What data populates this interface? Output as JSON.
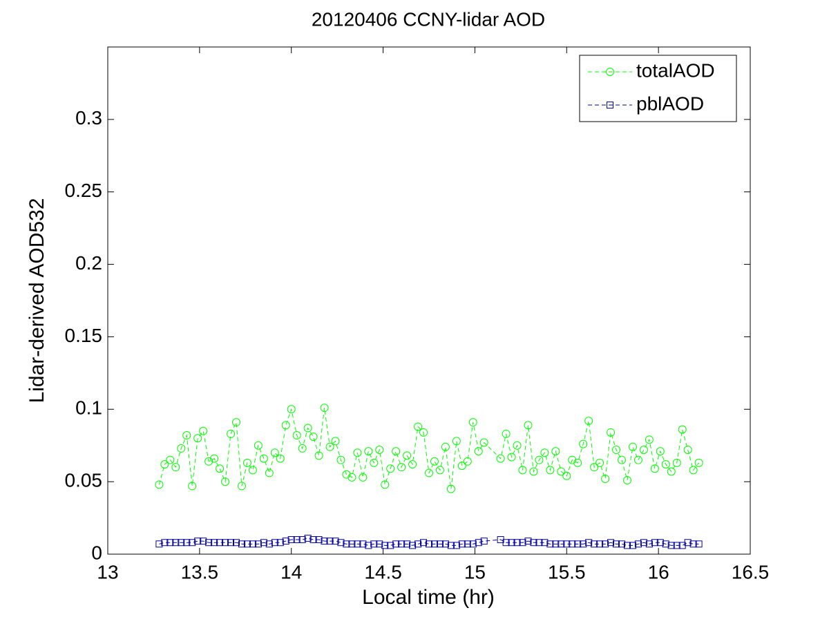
{
  "chart_data": {
    "type": "line",
    "title": "20120406 CCNY-lidar AOD",
    "xlabel": "Local time (hr)",
    "ylabel": "Lidar-derived AOD532",
    "xlim": [
      13,
      16.5
    ],
    "xticks": [
      13,
      13.5,
      14,
      14.5,
      15,
      15.5,
      16,
      16.5
    ],
    "ylim": [
      0,
      0.35
    ],
    "yticks": [
      0,
      0.05,
      0.1,
      0.15,
      0.2,
      0.25,
      0.3
    ],
    "legend": "upper right",
    "grid": false,
    "x": [
      13.28,
      13.31,
      13.34,
      13.37,
      13.4,
      13.43,
      13.46,
      13.49,
      13.52,
      13.55,
      13.58,
      13.61,
      13.64,
      13.67,
      13.7,
      13.73,
      13.76,
      13.79,
      13.82,
      13.85,
      13.88,
      13.91,
      13.94,
      13.97,
      14.0,
      14.03,
      14.06,
      14.09,
      14.12,
      14.15,
      14.18,
      14.21,
      14.24,
      14.27,
      14.3,
      14.33,
      14.36,
      14.39,
      14.42,
      14.45,
      14.48,
      14.51,
      14.54,
      14.57,
      14.6,
      14.63,
      14.66,
      14.69,
      14.72,
      14.75,
      14.78,
      14.81,
      14.84,
      14.87,
      14.9,
      14.93,
      14.96,
      14.99,
      15.02,
      15.05,
      15.14,
      15.17,
      15.2,
      15.23,
      15.26,
      15.29,
      15.32,
      15.35,
      15.38,
      15.41,
      15.44,
      15.47,
      15.5,
      15.53,
      15.56,
      15.59,
      15.62,
      15.65,
      15.68,
      15.71,
      15.74,
      15.77,
      15.8,
      15.83,
      15.86,
      15.89,
      15.92,
      15.95,
      15.98,
      16.01,
      16.04,
      16.07,
      16.1,
      16.13,
      16.16,
      16.19,
      16.22
    ],
    "series": [
      {
        "name": "totalAOD",
        "color": "#00ff00",
        "marker": "circle",
        "values": [
          0.048,
          0.062,
          0.065,
          0.06,
          0.073,
          0.082,
          0.047,
          0.08,
          0.085,
          0.064,
          0.066,
          0.059,
          0.05,
          0.083,
          0.091,
          0.047,
          0.063,
          0.058,
          0.075,
          0.066,
          0.056,
          0.07,
          0.066,
          0.089,
          0.1,
          0.082,
          0.073,
          0.087,
          0.081,
          0.068,
          0.101,
          0.074,
          0.078,
          0.065,
          0.055,
          0.053,
          0.07,
          0.053,
          0.071,
          0.063,
          0.072,
          0.048,
          0.059,
          0.071,
          0.06,
          0.068,
          0.062,
          0.088,
          0.084,
          0.056,
          0.064,
          0.058,
          0.074,
          0.045,
          0.078,
          0.061,
          0.064,
          0.091,
          0.071,
          0.077,
          0.066,
          0.083,
          0.067,
          0.075,
          0.058,
          0.089,
          0.057,
          0.065,
          0.07,
          0.058,
          0.071,
          0.057,
          0.054,
          0.065,
          0.063,
          0.076,
          0.092,
          0.06,
          0.063,
          0.052,
          0.084,
          0.072,
          0.065,
          0.051,
          0.074,
          0.065,
          0.072,
          0.079,
          0.059,
          0.071,
          0.062,
          0.057,
          0.063,
          0.086,
          0.072,
          0.058,
          0.063
        ]
      },
      {
        "name": "pblAOD",
        "color": "#0000a0",
        "marker": "square",
        "values": [
          0.007,
          0.008,
          0.008,
          0.008,
          0.008,
          0.008,
          0.008,
          0.009,
          0.009,
          0.008,
          0.008,
          0.008,
          0.008,
          0.008,
          0.008,
          0.007,
          0.007,
          0.007,
          0.007,
          0.008,
          0.007,
          0.008,
          0.008,
          0.009,
          0.01,
          0.01,
          0.01,
          0.011,
          0.01,
          0.01,
          0.009,
          0.009,
          0.009,
          0.008,
          0.007,
          0.007,
          0.007,
          0.007,
          0.006,
          0.007,
          0.007,
          0.006,
          0.006,
          0.007,
          0.007,
          0.007,
          0.006,
          0.007,
          0.008,
          0.007,
          0.007,
          0.007,
          0.007,
          0.006,
          0.006,
          0.007,
          0.007,
          0.007,
          0.008,
          0.009,
          0.01,
          0.008,
          0.008,
          0.008,
          0.008,
          0.009,
          0.008,
          0.008,
          0.008,
          0.007,
          0.007,
          0.007,
          0.007,
          0.007,
          0.007,
          0.007,
          0.008,
          0.007,
          0.007,
          0.007,
          0.008,
          0.007,
          0.007,
          0.006,
          0.006,
          0.007,
          0.008,
          0.007,
          0.008,
          0.008,
          0.007,
          0.006,
          0.006,
          0.006,
          0.008,
          0.007,
          0.007
        ]
      }
    ]
  }
}
